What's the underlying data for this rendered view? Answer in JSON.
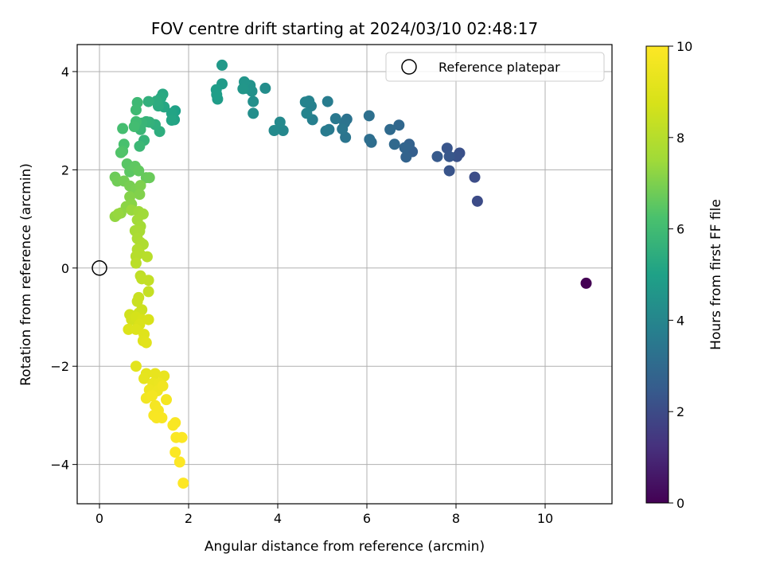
{
  "chart_data": {
    "type": "scatter",
    "title": "FOV centre drift starting at 2024/03/10 02:48:17",
    "xlabel": "Angular distance from reference (arcmin)",
    "ylabel": "Rotation from reference (arcmin)",
    "xlim": [
      -0.5,
      11.5
    ],
    "ylim": [
      -4.8,
      4.55
    ],
    "xticks": [
      0,
      2,
      4,
      6,
      8,
      10
    ],
    "yticks": [
      -4,
      -2,
      0,
      2,
      4
    ],
    "grid": true,
    "legend": {
      "placement": "top-right",
      "entries": [
        "Reference platepar"
      ]
    },
    "reference_point": {
      "x": 0,
      "y": 0,
      "label": "Reference platepar"
    },
    "colorbar": {
      "label": "Hours from first FF file",
      "colormap": "viridis",
      "range": [
        0,
        10
      ],
      "ticks": [
        0,
        2,
        4,
        6,
        8,
        10
      ]
    },
    "points": [
      {
        "x": 10.92,
        "y": -0.31,
        "c": 0.0
      },
      {
        "x": 8.48,
        "y": 1.36,
        "c": 2.0
      },
      {
        "x": 8.42,
        "y": 1.85,
        "c": 2.05
      },
      {
        "x": 8.08,
        "y": 2.34,
        "c": 2.15
      },
      {
        "x": 8.02,
        "y": 2.27,
        "c": 2.2
      },
      {
        "x": 7.85,
        "y": 1.98,
        "c": 2.25
      },
      {
        "x": 7.8,
        "y": 2.44,
        "c": 2.3
      },
      {
        "x": 7.85,
        "y": 2.27,
        "c": 2.35
      },
      {
        "x": 7.58,
        "y": 2.27,
        "c": 2.45
      },
      {
        "x": 7.02,
        "y": 2.37,
        "c": 2.6
      },
      {
        "x": 6.95,
        "y": 2.52,
        "c": 2.7
      },
      {
        "x": 6.88,
        "y": 2.26,
        "c": 2.75
      },
      {
        "x": 6.85,
        "y": 2.45,
        "c": 2.8
      },
      {
        "x": 6.72,
        "y": 2.91,
        "c": 2.9
      },
      {
        "x": 6.62,
        "y": 2.52,
        "c": 2.95
      },
      {
        "x": 6.52,
        "y": 2.82,
        "c": 3.0
      },
      {
        "x": 6.1,
        "y": 2.56,
        "c": 3.1
      },
      {
        "x": 6.06,
        "y": 2.62,
        "c": 3.15
      },
      {
        "x": 6.05,
        "y": 3.1,
        "c": 3.2
      },
      {
        "x": 5.55,
        "y": 3.03,
        "c": 3.3
      },
      {
        "x": 5.5,
        "y": 2.96,
        "c": 3.35
      },
      {
        "x": 5.52,
        "y": 2.66,
        "c": 3.4
      },
      {
        "x": 5.45,
        "y": 2.83,
        "c": 3.45
      },
      {
        "x": 5.3,
        "y": 3.04,
        "c": 3.5
      },
      {
        "x": 5.15,
        "y": 2.82,
        "c": 3.55
      },
      {
        "x": 5.08,
        "y": 2.79,
        "c": 3.6
      },
      {
        "x": 5.12,
        "y": 3.39,
        "c": 3.65
      },
      {
        "x": 4.78,
        "y": 3.02,
        "c": 3.75
      },
      {
        "x": 4.75,
        "y": 3.3,
        "c": 3.8
      },
      {
        "x": 4.7,
        "y": 3.4,
        "c": 3.85
      },
      {
        "x": 4.62,
        "y": 3.38,
        "c": 3.9
      },
      {
        "x": 4.65,
        "y": 3.15,
        "c": 3.95
      },
      {
        "x": 4.12,
        "y": 2.8,
        "c": 4.05
      },
      {
        "x": 4.05,
        "y": 2.97,
        "c": 4.1
      },
      {
        "x": 3.92,
        "y": 2.8,
        "c": 4.15
      },
      {
        "x": 3.72,
        "y": 3.66,
        "c": 4.25
      },
      {
        "x": 3.45,
        "y": 3.15,
        "c": 4.3
      },
      {
        "x": 3.45,
        "y": 3.39,
        "c": 4.35
      },
      {
        "x": 3.42,
        "y": 3.6,
        "c": 4.4
      },
      {
        "x": 3.38,
        "y": 3.72,
        "c": 4.45
      },
      {
        "x": 3.3,
        "y": 3.66,
        "c": 4.5
      },
      {
        "x": 3.25,
        "y": 3.79,
        "c": 4.55
      },
      {
        "x": 3.22,
        "y": 3.65,
        "c": 4.6
      },
      {
        "x": 2.75,
        "y": 4.13,
        "c": 4.7
      },
      {
        "x": 2.75,
        "y": 3.75,
        "c": 4.75
      },
      {
        "x": 2.65,
        "y": 3.44,
        "c": 4.8
      },
      {
        "x": 2.62,
        "y": 3.63,
        "c": 4.85
      },
      {
        "x": 2.63,
        "y": 3.53,
        "c": 4.9
      },
      {
        "x": 1.7,
        "y": 3.2,
        "c": 5.0
      },
      {
        "x": 1.68,
        "y": 3.02,
        "c": 5.05
      },
      {
        "x": 1.62,
        "y": 3.15,
        "c": 5.1
      },
      {
        "x": 1.62,
        "y": 3.01,
        "c": 5.15
      },
      {
        "x": 1.45,
        "y": 3.28,
        "c": 5.2
      },
      {
        "x": 1.42,
        "y": 3.54,
        "c": 5.25
      },
      {
        "x": 1.38,
        "y": 3.47,
        "c": 5.3
      },
      {
        "x": 1.32,
        "y": 3.3,
        "c": 5.35
      },
      {
        "x": 1.28,
        "y": 3.4,
        "c": 5.4
      },
      {
        "x": 1.35,
        "y": 2.78,
        "c": 5.45
      },
      {
        "x": 1.25,
        "y": 2.92,
        "c": 5.5
      },
      {
        "x": 1.1,
        "y": 3.39,
        "c": 5.55
      },
      {
        "x": 1.12,
        "y": 2.97,
        "c": 5.6
      },
      {
        "x": 1.05,
        "y": 2.98,
        "c": 5.65
      },
      {
        "x": 1.0,
        "y": 2.6,
        "c": 5.7
      },
      {
        "x": 0.95,
        "y": 2.95,
        "c": 5.75
      },
      {
        "x": 0.92,
        "y": 2.82,
        "c": 5.8
      },
      {
        "x": 0.9,
        "y": 2.48,
        "c": 5.85
      },
      {
        "x": 0.85,
        "y": 3.37,
        "c": 5.9
      },
      {
        "x": 0.82,
        "y": 3.22,
        "c": 5.95
      },
      {
        "x": 0.82,
        "y": 2.98,
        "c": 6.0
      },
      {
        "x": 0.78,
        "y": 2.88,
        "c": 6.05
      },
      {
        "x": 0.52,
        "y": 2.84,
        "c": 6.1
      },
      {
        "x": 0.55,
        "y": 2.52,
        "c": 6.2
      },
      {
        "x": 0.52,
        "y": 2.38,
        "c": 6.3
      },
      {
        "x": 0.48,
        "y": 2.35,
        "c": 6.35
      },
      {
        "x": 0.62,
        "y": 2.12,
        "c": 6.45
      },
      {
        "x": 0.68,
        "y": 1.96,
        "c": 6.5
      },
      {
        "x": 0.8,
        "y": 2.07,
        "c": 6.55
      },
      {
        "x": 0.88,
        "y": 1.98,
        "c": 6.6
      },
      {
        "x": 1.05,
        "y": 1.84,
        "c": 6.65
      },
      {
        "x": 1.12,
        "y": 1.84,
        "c": 6.7
      },
      {
        "x": 0.35,
        "y": 1.85,
        "c": 6.75
      },
      {
        "x": 0.4,
        "y": 1.77,
        "c": 6.8
      },
      {
        "x": 0.55,
        "y": 1.77,
        "c": 6.85
      },
      {
        "x": 0.68,
        "y": 1.67,
        "c": 6.9
      },
      {
        "x": 0.82,
        "y": 1.6,
        "c": 6.95
      },
      {
        "x": 0.92,
        "y": 1.68,
        "c": 7.0
      },
      {
        "x": 0.9,
        "y": 1.5,
        "c": 7.05
      },
      {
        "x": 0.68,
        "y": 1.45,
        "c": 7.1
      },
      {
        "x": 0.72,
        "y": 1.3,
        "c": 7.15
      },
      {
        "x": 0.6,
        "y": 1.25,
        "c": 7.2
      },
      {
        "x": 0.48,
        "y": 1.12,
        "c": 7.25
      },
      {
        "x": 0.35,
        "y": 1.05,
        "c": 7.3
      },
      {
        "x": 0.42,
        "y": 1.1,
        "c": 7.35
      },
      {
        "x": 0.72,
        "y": 1.18,
        "c": 7.4
      },
      {
        "x": 0.88,
        "y": 1.15,
        "c": 7.45
      },
      {
        "x": 0.98,
        "y": 1.1,
        "c": 7.5
      },
      {
        "x": 0.85,
        "y": 0.98,
        "c": 7.55
      },
      {
        "x": 0.92,
        "y": 0.85,
        "c": 7.6
      },
      {
        "x": 0.8,
        "y": 0.76,
        "c": 7.65
      },
      {
        "x": 0.9,
        "y": 0.75,
        "c": 7.7
      },
      {
        "x": 0.85,
        "y": 0.6,
        "c": 7.75
      },
      {
        "x": 0.92,
        "y": 0.52,
        "c": 7.8
      },
      {
        "x": 0.98,
        "y": 0.48,
        "c": 7.85
      },
      {
        "x": 0.85,
        "y": 0.38,
        "c": 7.9
      },
      {
        "x": 0.9,
        "y": 0.3,
        "c": 7.95
      },
      {
        "x": 0.82,
        "y": 0.24,
        "c": 8.0
      },
      {
        "x": 1.07,
        "y": 0.23,
        "c": 8.05
      },
      {
        "x": 0.82,
        "y": 0.1,
        "c": 8.1
      },
      {
        "x": 0.92,
        "y": -0.16,
        "c": 8.2
      },
      {
        "x": 0.95,
        "y": -0.22,
        "c": 8.25
      },
      {
        "x": 1.1,
        "y": -0.25,
        "c": 8.3
      },
      {
        "x": 1.1,
        "y": -0.48,
        "c": 8.35
      },
      {
        "x": 0.88,
        "y": -0.6,
        "c": 8.4
      },
      {
        "x": 0.85,
        "y": -0.68,
        "c": 8.45
      },
      {
        "x": 0.95,
        "y": -0.85,
        "c": 8.5
      },
      {
        "x": 0.88,
        "y": -0.92,
        "c": 8.55
      },
      {
        "x": 0.68,
        "y": -0.95,
        "c": 8.6
      },
      {
        "x": 0.72,
        "y": -1.05,
        "c": 8.65
      },
      {
        "x": 0.82,
        "y": -1.0,
        "c": 8.7
      },
      {
        "x": 0.95,
        "y": -1.05,
        "c": 8.75
      },
      {
        "x": 1.1,
        "y": -1.05,
        "c": 8.8
      },
      {
        "x": 0.9,
        "y": -1.15,
        "c": 8.85
      },
      {
        "x": 0.65,
        "y": -1.25,
        "c": 8.9
      },
      {
        "x": 0.82,
        "y": -1.25,
        "c": 8.95
      },
      {
        "x": 1.0,
        "y": -1.35,
        "c": 9.0
      },
      {
        "x": 0.98,
        "y": -1.48,
        "c": 9.05
      },
      {
        "x": 1.05,
        "y": -1.52,
        "c": 9.1
      },
      {
        "x": 0.82,
        "y": -2.0,
        "c": 9.15
      },
      {
        "x": 1.05,
        "y": -2.15,
        "c": 9.2
      },
      {
        "x": 1.0,
        "y": -2.25,
        "c": 9.25
      },
      {
        "x": 1.25,
        "y": -2.15,
        "c": 9.3
      },
      {
        "x": 1.45,
        "y": -2.2,
        "c": 9.35
      },
      {
        "x": 1.2,
        "y": -2.35,
        "c": 9.4
      },
      {
        "x": 1.35,
        "y": -2.35,
        "c": 9.45
      },
      {
        "x": 1.12,
        "y": -2.48,
        "c": 9.5
      },
      {
        "x": 1.3,
        "y": -2.5,
        "c": 9.55
      },
      {
        "x": 1.42,
        "y": -2.4,
        "c": 9.6
      },
      {
        "x": 1.05,
        "y": -2.65,
        "c": 9.65
      },
      {
        "x": 1.18,
        "y": -2.6,
        "c": 9.7
      },
      {
        "x": 1.5,
        "y": -2.68,
        "c": 9.72
      },
      {
        "x": 1.25,
        "y": -2.8,
        "c": 9.75
      },
      {
        "x": 1.32,
        "y": -2.9,
        "c": 9.78
      },
      {
        "x": 1.22,
        "y": -3.0,
        "c": 9.8
      },
      {
        "x": 1.28,
        "y": -3.05,
        "c": 9.82
      },
      {
        "x": 1.4,
        "y": -3.05,
        "c": 9.84
      },
      {
        "x": 1.7,
        "y": -3.15,
        "c": 9.86
      },
      {
        "x": 1.65,
        "y": -3.2,
        "c": 9.88
      },
      {
        "x": 1.72,
        "y": -3.45,
        "c": 9.9
      },
      {
        "x": 1.85,
        "y": -3.45,
        "c": 9.92
      },
      {
        "x": 1.7,
        "y": -3.75,
        "c": 9.94
      },
      {
        "x": 1.8,
        "y": -3.95,
        "c": 9.96
      },
      {
        "x": 1.88,
        "y": -4.38,
        "c": 10.0
      }
    ]
  }
}
